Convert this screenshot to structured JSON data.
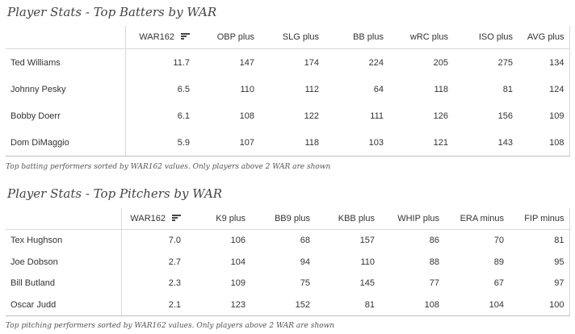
{
  "batting": {
    "title": "Player Stats - Top Batters by WAR",
    "columns": [
      "WAR162",
      "OBP plus",
      "SLG plus",
      "BB plus",
      "wRC plus",
      "ISO plus",
      "AVG plus"
    ],
    "rows": [
      {
        "name": "Ted Williams",
        "values": [
          "11.7",
          "147",
          "174",
          "224",
          "205",
          "275",
          "134"
        ]
      },
      {
        "name": "Johnny Pesky",
        "values": [
          "6.5",
          "110",
          "112",
          "64",
          "118",
          "81",
          "124"
        ]
      },
      {
        "name": "Bobby Doerr",
        "values": [
          "6.1",
          "108",
          "122",
          "111",
          "126",
          "156",
          "109"
        ]
      },
      {
        "name": "Dom DiMaggio",
        "values": [
          "5.9",
          "107",
          "118",
          "103",
          "121",
          "143",
          "108"
        ]
      }
    ],
    "caption": "Top batting performers sorted by WAR162 values. Only players above 2 WAR are shown"
  },
  "pitching": {
    "title": "Player Stats - Top Pitchers by WAR",
    "columns": [
      "WAR162",
      "K9 plus",
      "BB9 plus",
      "KBB plus",
      "WHIP plus",
      "ERA minus",
      "FIP minus"
    ],
    "rows": [
      {
        "name": "Tex Hughson",
        "values": [
          "7.0",
          "106",
          "68",
          "157",
          "86",
          "70",
          "81"
        ]
      },
      {
        "name": "Joe Dobson",
        "values": [
          "2.7",
          "104",
          "94",
          "110",
          "88",
          "89",
          "95"
        ]
      },
      {
        "name": "Bill Butland",
        "values": [
          "2.3",
          "109",
          "75",
          "145",
          "77",
          "67",
          "97"
        ]
      },
      {
        "name": "Oscar Judd",
        "values": [
          "2.1",
          "123",
          "152",
          "81",
          "108",
          "104",
          "100"
        ]
      }
    ],
    "caption": "Top pitching performers sorted by WAR162 values. Only players above 2 WAR are shown"
  },
  "icons": {
    "sort": "sort-descending-icon"
  }
}
